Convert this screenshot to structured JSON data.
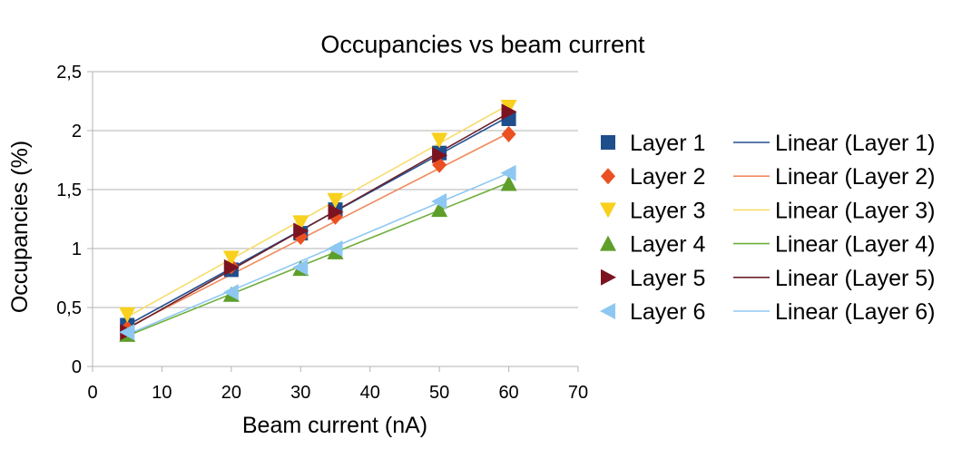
{
  "chart_data": {
    "type": "scatter",
    "title": "Occupancies vs beam current",
    "xlabel": "Beam current (nA)",
    "ylabel": "Occupancies (%)",
    "xlim": [
      0,
      70
    ],
    "ylim": [
      0,
      2.5
    ],
    "x_ticks": [
      "0",
      "10",
      "20",
      "30",
      "40",
      "50",
      "60",
      "70"
    ],
    "y_ticks": [
      "0",
      "0,5",
      "1",
      "1,5",
      "2",
      "2,5"
    ],
    "grid": "horizontal",
    "legend_position": "right",
    "x": [
      5,
      20,
      30,
      35,
      50,
      60
    ],
    "series": [
      {
        "name": "Layer 1",
        "marker": "square",
        "color": "#1f4e8c",
        "values": [
          0.35,
          0.82,
          1.13,
          1.33,
          1.81,
          2.1
        ],
        "fit_name": "Linear (Layer 1)",
        "fit_color": "#264f8e",
        "fit": [
          0.35,
          2.12
        ]
      },
      {
        "name": "Layer 2",
        "marker": "diamond",
        "color": "#ea5022",
        "values": [
          0.32,
          0.85,
          1.1,
          1.27,
          1.71,
          1.97
        ],
        "fit_name": "Linear (Layer 2)",
        "fit_color": "#f08a5d",
        "fit": [
          0.33,
          1.98
        ]
      },
      {
        "name": "Layer 3",
        "marker": "triangle-down",
        "color": "#f8d01e",
        "values": [
          0.44,
          0.92,
          1.22,
          1.41,
          1.92,
          2.2
        ],
        "fit_name": "Linear (Layer 3)",
        "fit_color": "#f7dc6a",
        "fit": [
          0.42,
          2.22
        ]
      },
      {
        "name": "Layer 4",
        "marker": "triangle-up",
        "color": "#5e9e2b",
        "values": [
          0.27,
          0.61,
          0.83,
          0.97,
          1.33,
          1.55
        ],
        "fit_name": "Linear (Layer 4)",
        "fit_color": "#6fae3c",
        "fit": [
          0.26,
          1.56
        ]
      },
      {
        "name": "Layer 5",
        "marker": "triangle-right",
        "color": "#7b1420",
        "values": [
          0.29,
          0.84,
          1.15,
          1.31,
          1.79,
          2.16
        ],
        "fit_name": "Linear (Layer 5)",
        "fit_color": "#6a1f2a",
        "fit": [
          0.32,
          2.15
        ]
      },
      {
        "name": "Layer 6",
        "marker": "triangle-left",
        "color": "#8ec8f2",
        "values": [
          0.29,
          0.63,
          0.84,
          1.0,
          1.4,
          1.64
        ],
        "fit_name": "Linear (Layer 6)",
        "fit_color": "#8ec8f2",
        "fit": [
          0.27,
          1.64
        ]
      }
    ]
  }
}
